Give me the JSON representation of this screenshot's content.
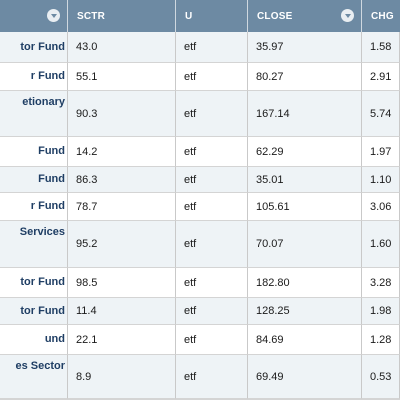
{
  "table": {
    "headers": {
      "name": "",
      "sctr": "SCTR",
      "u": "U",
      "close": "CLOSE",
      "chg": "CHG"
    },
    "rows": [
      {
        "name": "tor Fund",
        "sctr": "43.0",
        "u": "etf",
        "close": "35.97",
        "chg": "1.58"
      },
      {
        "name": "r Fund",
        "sctr": "55.1",
        "u": "etf",
        "close": "80.27",
        "chg": "2.91"
      },
      {
        "name": "etionary",
        "sctr": "90.3",
        "u": "etf",
        "close": "167.14",
        "chg": "5.74"
      },
      {
        "name": "Fund",
        "sctr": "14.2",
        "u": "etf",
        "close": "62.29",
        "chg": "1.97"
      },
      {
        "name": "Fund",
        "sctr": "86.3",
        "u": "etf",
        "close": "35.01",
        "chg": "1.10"
      },
      {
        "name": "r Fund",
        "sctr": "78.7",
        "u": "etf",
        "close": "105.61",
        "chg": "3.06"
      },
      {
        "name": "Services",
        "sctr": "95.2",
        "u": "etf",
        "close": "70.07",
        "chg": "1.60"
      },
      {
        "name": "tor Fund",
        "sctr": "98.5",
        "u": "etf",
        "close": "182.80",
        "chg": "3.28"
      },
      {
        "name": "tor Fund",
        "sctr": "11.4",
        "u": "etf",
        "close": "128.25",
        "chg": "1.98"
      },
      {
        "name": "und",
        "sctr": "22.1",
        "u": "etf",
        "close": "84.69",
        "chg": "1.28"
      },
      {
        "name": "es Sector",
        "sctr": "8.9",
        "u": "etf",
        "close": "69.49",
        "chg": "0.53"
      }
    ]
  }
}
